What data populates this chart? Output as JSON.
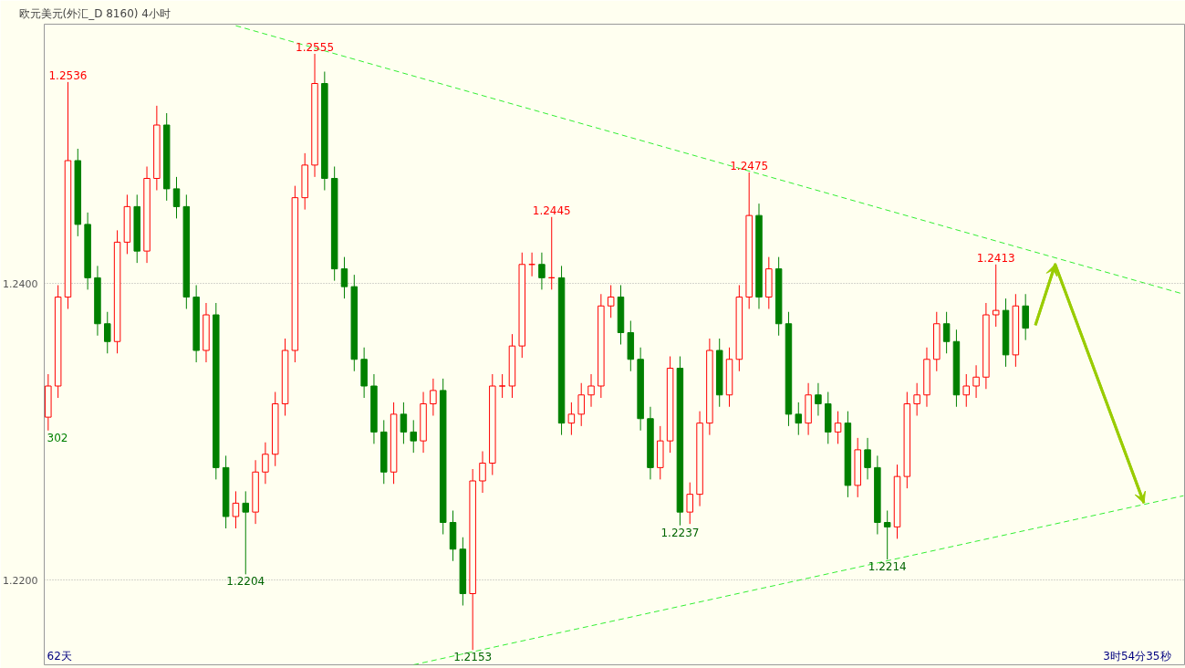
{
  "chart_data": {
    "type": "candlestick",
    "title": "欧元美元(外汇_D 8160)",
    "subtitle": "4小时",
    "categories": [
      null,
      null,
      null,
      null,
      null,
      null,
      null,
      null,
      null,
      null,
      null,
      null,
      null,
      null,
      null,
      null,
      null,
      null,
      null,
      null,
      null,
      null,
      null,
      null,
      null,
      null,
      null,
      null,
      null,
      null,
      null,
      null,
      null,
      null,
      null,
      null,
      null,
      null,
      null,
      null,
      null,
      null,
      null,
      null,
      null,
      null,
      null,
      null,
      null,
      null,
      null,
      null,
      null,
      null,
      null,
      null,
      null,
      null,
      null,
      null,
      null,
      null,
      null,
      null,
      null,
      null,
      null,
      null,
      null,
      null,
      null,
      null,
      null,
      null,
      null,
      null,
      null,
      null,
      null,
      null,
      null,
      null,
      null,
      null,
      null,
      null,
      null,
      null,
      null,
      null,
      null,
      null,
      null,
      null,
      null,
      null,
      null,
      null,
      null,
      null,
      null,
      null,
      null,
      null,
      null,
      null,
      null,
      null,
      null,
      null,
      null,
      null,
      null,
      null,
      null,
      null
    ],
    "ohlc": [
      [
        1.231,
        1.2339,
        1.2301,
        1.2331
      ],
      [
        1.2331,
        1.2399,
        1.2323,
        1.2391
      ],
      [
        1.2391,
        1.2536,
        1.2383,
        1.2483
      ],
      [
        1.2483,
        1.2491,
        1.2432,
        1.244
      ],
      [
        1.244,
        1.2448,
        1.2396,
        1.2404
      ],
      [
        1.2404,
        1.2412,
        1.2365,
        1.2373
      ],
      [
        1.2373,
        1.2381,
        1.2353,
        1.2361
      ],
      [
        1.2361,
        1.2436,
        1.2353,
        1.2428
      ],
      [
        1.2428,
        1.246,
        1.242,
        1.2452
      ],
      [
        1.2452,
        1.246,
        1.2414,
        1.2422
      ],
      [
        1.2422,
        1.2479,
        1.2414,
        1.2471
      ],
      [
        1.2471,
        1.252,
        1.2463,
        1.2507
      ],
      [
        1.2507,
        1.2515,
        1.2456,
        1.2464
      ],
      [
        1.2464,
        1.2472,
        1.2444,
        1.2452
      ],
      [
        1.2452,
        1.246,
        1.2383,
        1.2391
      ],
      [
        1.2391,
        1.2399,
        1.2347,
        1.2355
      ],
      [
        1.2355,
        1.2387,
        1.2347,
        1.2379
      ],
      [
        1.2379,
        1.2387,
        1.2268,
        1.2276
      ],
      [
        1.2276,
        1.2284,
        1.2235,
        1.2243
      ],
      [
        1.2243,
        1.226,
        1.2235,
        1.2252
      ],
      [
        1.2252,
        1.226,
        1.2204,
        1.2246
      ],
      [
        1.2246,
        1.2281,
        1.2238,
        1.2273
      ],
      [
        1.2273,
        1.2293,
        1.2265,
        1.2285
      ],
      [
        1.2285,
        1.2327,
        1.2277,
        1.2319
      ],
      [
        1.2319,
        1.2363,
        1.2311,
        1.2355
      ],
      [
        1.2355,
        1.2466,
        1.2347,
        1.2458
      ],
      [
        1.2458,
        1.2488,
        1.245,
        1.248
      ],
      [
        1.248,
        1.2555,
        1.2472,
        1.2535
      ],
      [
        1.2535,
        1.2543,
        1.2463,
        1.2471
      ],
      [
        1.2471,
        1.2479,
        1.2402,
        1.241
      ],
      [
        1.241,
        1.2418,
        1.239,
        1.2398
      ],
      [
        1.2398,
        1.2406,
        1.2341,
        1.2349
      ],
      [
        1.2349,
        1.2357,
        1.2323,
        1.2331
      ],
      [
        1.2331,
        1.2339,
        1.2292,
        1.23
      ],
      [
        1.23,
        1.2308,
        1.2265,
        1.2273
      ],
      [
        1.2273,
        1.232,
        1.2265,
        1.2312
      ],
      [
        1.2312,
        1.232,
        1.2292,
        1.23
      ],
      [
        1.23,
        1.2308,
        1.2286,
        1.2294
      ],
      [
        1.2294,
        1.2327,
        1.2286,
        1.2319
      ],
      [
        1.2319,
        1.2336,
        1.2311,
        1.2328
      ],
      [
        1.2328,
        1.2336,
        1.2231,
        1.2239
      ],
      [
        1.2239,
        1.2247,
        1.2213,
        1.2221
      ],
      [
        1.2221,
        1.2229,
        1.2183,
        1.2191
      ],
      [
        1.2191,
        1.2275,
        1.2153,
        1.2267
      ],
      [
        1.2267,
        1.2287,
        1.2259,
        1.2279
      ],
      [
        1.2279,
        1.2339,
        1.2271,
        1.2331
      ],
      [
        1.2331,
        1.2339,
        1.2323,
        1.2331
      ],
      [
        1.2331,
        1.2366,
        1.2323,
        1.2358
      ],
      [
        1.2358,
        1.2421,
        1.235,
        1.2413
      ],
      [
        1.2413,
        1.2421,
        1.2405,
        1.2413
      ],
      [
        1.2413,
        1.2421,
        1.2396,
        1.2404
      ],
      [
        1.2404,
        1.2445,
        1.2396,
        1.2404
      ],
      [
        1.2404,
        1.2412,
        1.2298,
        1.2306
      ],
      [
        1.2306,
        1.232,
        1.2298,
        1.2312
      ],
      [
        1.2312,
        1.2333,
        1.2304,
        1.2325
      ],
      [
        1.2325,
        1.2339,
        1.2317,
        1.2331
      ],
      [
        1.2331,
        1.2393,
        1.2323,
        1.2385
      ],
      [
        1.2385,
        1.2399,
        1.2377,
        1.2391
      ],
      [
        1.2391,
        1.2399,
        1.2359,
        1.2367
      ],
      [
        1.2367,
        1.2375,
        1.2341,
        1.2349
      ],
      [
        1.2349,
        1.2357,
        1.2301,
        1.2309
      ],
      [
        1.2309,
        1.2317,
        1.2268,
        1.2276
      ],
      [
        1.2276,
        1.2304,
        1.2268,
        1.2294
      ],
      [
        1.2294,
        1.2351,
        1.2286,
        1.2343
      ],
      [
        1.2343,
        1.2351,
        1.2237,
        1.2246
      ],
      [
        1.2246,
        1.2266,
        1.2238,
        1.2258
      ],
      [
        1.2258,
        1.2314,
        1.225,
        1.2306
      ],
      [
        1.2306,
        1.2363,
        1.2298,
        1.2355
      ],
      [
        1.2355,
        1.2363,
        1.2317,
        1.2325
      ],
      [
        1.2325,
        1.2357,
        1.2317,
        1.2349
      ],
      [
        1.2349,
        1.2399,
        1.2341,
        1.2391
      ],
      [
        1.2391,
        1.2475,
        1.2383,
        1.2446
      ],
      [
        1.2446,
        1.2454,
        1.2383,
        1.2391
      ],
      [
        1.2391,
        1.2418,
        1.2383,
        1.241
      ],
      [
        1.241,
        1.2418,
        1.2365,
        1.2373
      ],
      [
        1.2373,
        1.2381,
        1.2304,
        1.2312
      ],
      [
        1.2312,
        1.232,
        1.2298,
        1.2306
      ],
      [
        1.2306,
        1.2333,
        1.2298,
        1.2325
      ],
      [
        1.2325,
        1.2333,
        1.2311,
        1.2319
      ],
      [
        1.2319,
        1.2327,
        1.2292,
        1.23
      ],
      [
        1.23,
        1.2314,
        1.2292,
        1.2306
      ],
      [
        1.2306,
        1.2314,
        1.2256,
        1.2264
      ],
      [
        1.2264,
        1.2296,
        1.2256,
        1.2288
      ],
      [
        1.2288,
        1.2296,
        1.2268,
        1.2276
      ],
      [
        1.2276,
        1.2284,
        1.2231,
        1.2239
      ],
      [
        1.2239,
        1.2247,
        1.2214,
        1.2236
      ],
      [
        1.2236,
        1.2278,
        1.2228,
        1.227
      ],
      [
        1.227,
        1.2327,
        1.2262,
        1.2319
      ],
      [
        1.2319,
        1.2333,
        1.2311,
        1.2325
      ],
      [
        1.2325,
        1.2357,
        1.2317,
        1.2349
      ],
      [
        1.2349,
        1.2381,
        1.2341,
        1.2373
      ],
      [
        1.2373,
        1.2381,
        1.2353,
        1.2361
      ],
      [
        1.2361,
        1.2369,
        1.2317,
        1.2325
      ],
      [
        1.2325,
        1.2339,
        1.2317,
        1.2331
      ],
      [
        1.2331,
        1.2345,
        1.2323,
        1.2337
      ],
      [
        1.2337,
        1.2387,
        1.2329,
        1.2379
      ],
      [
        1.2379,
        1.2413,
        1.2371,
        1.2382
      ],
      [
        1.2382,
        1.239,
        1.2344,
        1.2352
      ],
      [
        1.2352,
        1.2393,
        1.2344,
        1.2385
      ],
      [
        1.2385,
        1.2393,
        1.2362,
        1.237
      ],
      null,
      null,
      null,
      null,
      null,
      null,
      null,
      null,
      null,
      null,
      null,
      null,
      null,
      null,
      null,
      null
    ],
    "series": [
      {
        "type": "line",
        "color": "#33ee33",
        "line_style": "dashed",
        "values": [
          null,
          null,
          null,
          null,
          null,
          null,
          null,
          null,
          null,
          null,
          null,
          null,
          null,
          null,
          null,
          null,
          null,
          null,
          null,
          1.2574,
          null,
          null,
          null,
          null,
          null,
          null,
          null,
          null,
          null,
          null,
          null,
          null,
          null,
          null,
          null,
          null,
          null,
          null,
          null,
          null,
          null,
          null,
          null,
          null,
          null,
          null,
          null,
          null,
          null,
          null,
          null,
          null,
          null,
          null,
          null,
          null,
          null,
          null,
          null,
          null,
          null,
          null,
          null,
          null,
          null,
          null,
          null,
          null,
          null,
          null,
          null,
          null,
          null,
          null,
          null,
          null,
          null,
          null,
          null,
          null,
          null,
          null,
          null,
          null,
          null,
          null,
          null,
          null,
          null,
          null,
          null,
          null,
          null,
          null,
          null,
          null,
          null,
          null,
          null,
          null,
          null,
          null,
          null,
          null,
          null,
          null,
          null,
          null,
          null,
          null,
          null,
          null,
          null,
          null,
          null,
          1.2393
        ]
      },
      {
        "type": "line",
        "color": "#33ee33",
        "line_style": "dashed",
        "values": [
          null,
          null,
          null,
          null,
          null,
          null,
          null,
          null,
          null,
          null,
          null,
          null,
          null,
          null,
          null,
          null,
          null,
          null,
          null,
          null,
          null,
          null,
          null,
          null,
          null,
          null,
          null,
          null,
          null,
          null,
          null,
          null,
          null,
          null,
          null,
          null,
          null,
          1.2143,
          null,
          null,
          null,
          null,
          null,
          null,
          null,
          null,
          null,
          null,
          null,
          null,
          null,
          null,
          null,
          null,
          null,
          null,
          null,
          null,
          null,
          null,
          null,
          null,
          null,
          null,
          null,
          null,
          null,
          null,
          null,
          null,
          null,
          null,
          null,
          null,
          null,
          null,
          null,
          null,
          null,
          null,
          null,
          null,
          null,
          null,
          null,
          null,
          null,
          null,
          null,
          null,
          null,
          null,
          null,
          null,
          null,
          null,
          null,
          null,
          null,
          null,
          null,
          null,
          null,
          null,
          null,
          null,
          null,
          null,
          null,
          null,
          null,
          null,
          null,
          null,
          null,
          1.2257
        ]
      },
      {
        "type": "line",
        "color": "#99cc00",
        "line_style": "solid",
        "values": [
          null,
          null,
          null,
          null,
          null,
          null,
          null,
          null,
          null,
          null,
          null,
          null,
          null,
          null,
          null,
          null,
          null,
          null,
          null,
          null,
          null,
          null,
          null,
          null,
          null,
          null,
          null,
          null,
          null,
          null,
          null,
          null,
          null,
          null,
          null,
          null,
          null,
          null,
          null,
          null,
          null,
          null,
          null,
          null,
          null,
          null,
          null,
          null,
          null,
          null,
          null,
          null,
          null,
          null,
          null,
          null,
          null,
          null,
          null,
          null,
          null,
          null,
          null,
          null,
          null,
          null,
          null,
          null,
          null,
          null,
          null,
          null,
          null,
          null,
          null,
          null,
          null,
          null,
          null,
          null,
          null,
          null,
          null,
          null,
          null,
          null,
          null,
          null,
          null,
          null,
          null,
          null,
          null,
          null,
          null,
          null,
          null,
          null,
          null,
          null,
          1.2372,
          null,
          1.2413,
          null,
          null,
          null,
          null,
          null,
          null,
          null,
          null,
          1.2252,
          null,
          null,
          null,
          null
        ]
      }
    ],
    "ylim": [
      1.2143,
      1.2575
    ],
    "yticks": [
      {
        "value": 1.24,
        "label": "1.2400"
      },
      {
        "value": 1.22,
        "label": "1.2200"
      }
    ],
    "tick_labels": "y",
    "grid": "y",
    "annotations": [
      {
        "text": "1.2536",
        "y": 1.2536
      },
      {
        "text": "1.2555",
        "y": 1.2555
      },
      {
        "text": "1.2445",
        "y": 1.2445
      },
      {
        "text": "1.2475",
        "y": 1.2475
      },
      {
        "text": "1.2413",
        "y": 1.2413
      },
      {
        "text": "1.2204",
        "y": 1.2204
      },
      {
        "text": "1.2153",
        "y": 1.2153
      },
      {
        "text": "1.2237",
        "y": 1.2237
      },
      {
        "text": "1.2214",
        "y": 1.2214
      },
      "302",
      "62天",
      "3时54分35秒"
    ]
  }
}
